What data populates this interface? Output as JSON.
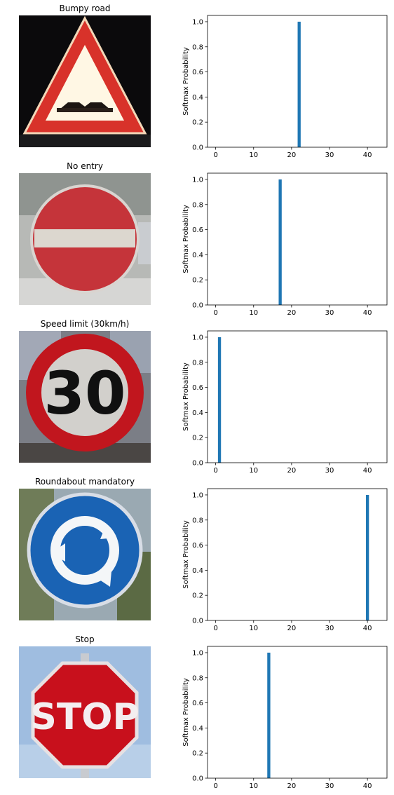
{
  "colors": {
    "bar": "#1f77b4"
  },
  "panels": [
    {
      "title": "Bumpy road",
      "image": "bumpy-road-sign"
    },
    {
      "title": "No entry",
      "image": "no-entry-sign"
    },
    {
      "title": "Speed limit (30km/h)",
      "image": "speed-limit-30-sign",
      "sign_text": "30"
    },
    {
      "title": "Roundabout mandatory",
      "image": "roundabout-mandatory-sign"
    },
    {
      "title": "Stop",
      "image": "stop-sign",
      "sign_text": "STOP"
    }
  ],
  "chart_data": [
    {
      "type": "bar",
      "ylabel": "Softmax Probability",
      "xlim": [
        -2.15,
        45.15
      ],
      "ylim": [
        0,
        1.05
      ],
      "xticks": [
        0,
        10,
        20,
        30,
        40
      ],
      "yticks": [
        0.0,
        0.2,
        0.4,
        0.6,
        0.8,
        1.0
      ],
      "ytick_labels": [
        "0.0",
        "0.2",
        "0.4",
        "0.6",
        "0.8",
        "1.0"
      ],
      "bars": [
        {
          "x": 22,
          "value": 1.0
        }
      ]
    },
    {
      "type": "bar",
      "ylabel": "Softmax Probability",
      "xlim": [
        -2.15,
        45.15
      ],
      "ylim": [
        0,
        1.05
      ],
      "xticks": [
        0,
        10,
        20,
        30,
        40
      ],
      "yticks": [
        0.0,
        0.2,
        0.4,
        0.6,
        0.8,
        1.0
      ],
      "ytick_labels": [
        "0.0",
        "0.2",
        "0.4",
        "0.6",
        "0.8",
        "1.0"
      ],
      "bars": [
        {
          "x": 17,
          "value": 1.0
        }
      ]
    },
    {
      "type": "bar",
      "ylabel": "Softmax Probability",
      "xlim": [
        -2.15,
        45.15
      ],
      "ylim": [
        0,
        1.05
      ],
      "xticks": [
        0,
        10,
        20,
        30,
        40
      ],
      "yticks": [
        0.0,
        0.2,
        0.4,
        0.6,
        0.8,
        1.0
      ],
      "ytick_labels": [
        "0.0",
        "0.2",
        "0.4",
        "0.6",
        "0.8",
        "1.0"
      ],
      "bars": [
        {
          "x": 1,
          "value": 1.0
        }
      ]
    },
    {
      "type": "bar",
      "ylabel": "Softmax Probability",
      "xlim": [
        -2.15,
        45.15
      ],
      "ylim": [
        0,
        1.05
      ],
      "xticks": [
        0,
        10,
        20,
        30,
        40
      ],
      "yticks": [
        0.0,
        0.2,
        0.4,
        0.6,
        0.8,
        1.0
      ],
      "ytick_labels": [
        "0.0",
        "0.2",
        "0.4",
        "0.6",
        "0.8",
        "1.0"
      ],
      "bars": [
        {
          "x": 40,
          "value": 1.0
        }
      ]
    },
    {
      "type": "bar",
      "ylabel": "Softmax Probability",
      "xlim": [
        -2.15,
        45.15
      ],
      "ylim": [
        0,
        1.05
      ],
      "xticks": [
        0,
        10,
        20,
        30,
        40
      ],
      "yticks": [
        0.0,
        0.2,
        0.4,
        0.6,
        0.8,
        1.0
      ],
      "ytick_labels": [
        "0.0",
        "0.2",
        "0.4",
        "0.6",
        "0.8",
        "1.0"
      ],
      "bars": [
        {
          "x": 14,
          "value": 1.0
        }
      ]
    }
  ]
}
